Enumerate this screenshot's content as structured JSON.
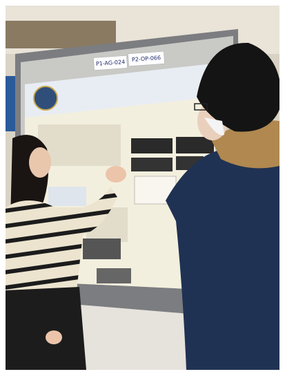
{
  "poster_labels": {
    "left": "P1-AG-024",
    "right": "P2-OP-066"
  }
}
